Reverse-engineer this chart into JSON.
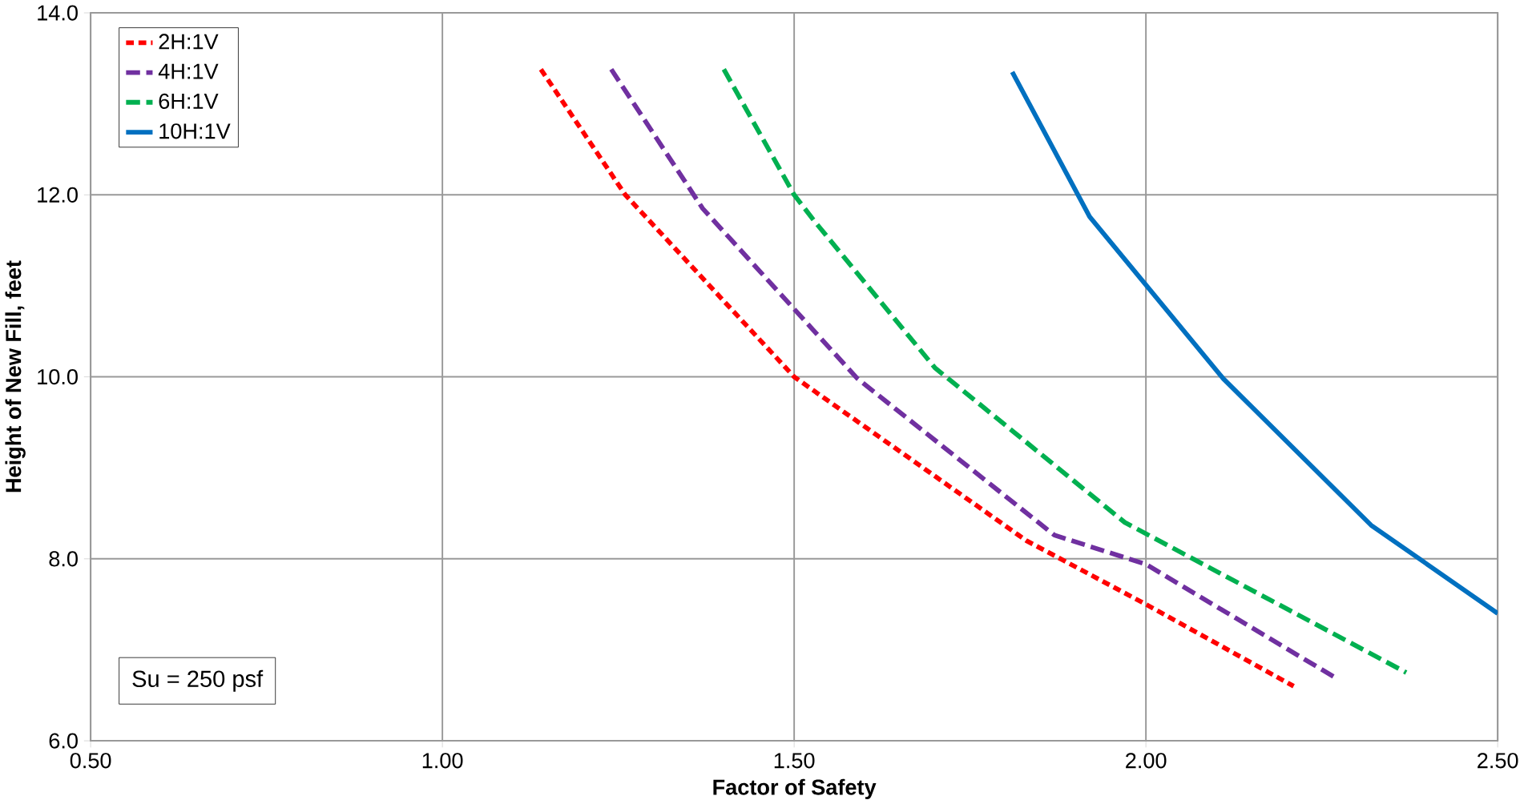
{
  "chart_data": {
    "type": "line",
    "xlabel": "Factor of Safety",
    "ylabel": "Height of New Fill, feet",
    "xlim": [
      0.5,
      2.5
    ],
    "ylim": [
      6.0,
      14.0
    ],
    "xticks": [
      {
        "value": 0.5,
        "label": "0.50"
      },
      {
        "value": 1.0,
        "label": "1.00"
      },
      {
        "value": 1.5,
        "label": "1.50"
      },
      {
        "value": 2.0,
        "label": "2.00"
      },
      {
        "value": 2.5,
        "label": "2.50"
      }
    ],
    "yticks": [
      {
        "value": 6,
        "label": "6.0"
      },
      {
        "value": 8,
        "label": "8.0"
      },
      {
        "value": 10,
        "label": "10.0"
      },
      {
        "value": 12,
        "label": "12.0"
      },
      {
        "value": 14,
        "label": "14.0"
      }
    ],
    "grid": true,
    "legend": "top left",
    "annotations": [
      "Su = 250 psf"
    ],
    "series": [
      {
        "name": "2H:1V",
        "color": "#ff0000",
        "line_style": "dotted",
        "x": [
          1.14,
          1.26,
          1.5,
          1.83,
          2.0,
          2.21
        ],
        "values": [
          13.38,
          12.0,
          10.0,
          8.2,
          7.5,
          6.6
        ]
      },
      {
        "name": "4H:1V",
        "color": "#7030a0",
        "line_style": "dashed",
        "x": [
          1.24,
          1.37,
          1.59,
          1.87,
          2.0,
          2.27
        ],
        "values": [
          13.38,
          11.85,
          9.98,
          8.26,
          7.94,
          6.69
        ]
      },
      {
        "name": "6H:1V",
        "color": "#00b050",
        "line_style": "dashed",
        "x": [
          1.4,
          1.5,
          1.53,
          1.7,
          1.97,
          2.37
        ],
        "values": [
          13.38,
          12.0,
          11.7,
          10.1,
          8.4,
          6.75
        ]
      },
      {
        "name": "10H:1V",
        "color": "#0070c0",
        "line_style": "solid",
        "x": [
          1.81,
          1.92,
          2.11,
          2.32,
          2.5
        ],
        "values": [
          13.35,
          11.76,
          9.98,
          8.37,
          7.4
        ]
      }
    ]
  }
}
